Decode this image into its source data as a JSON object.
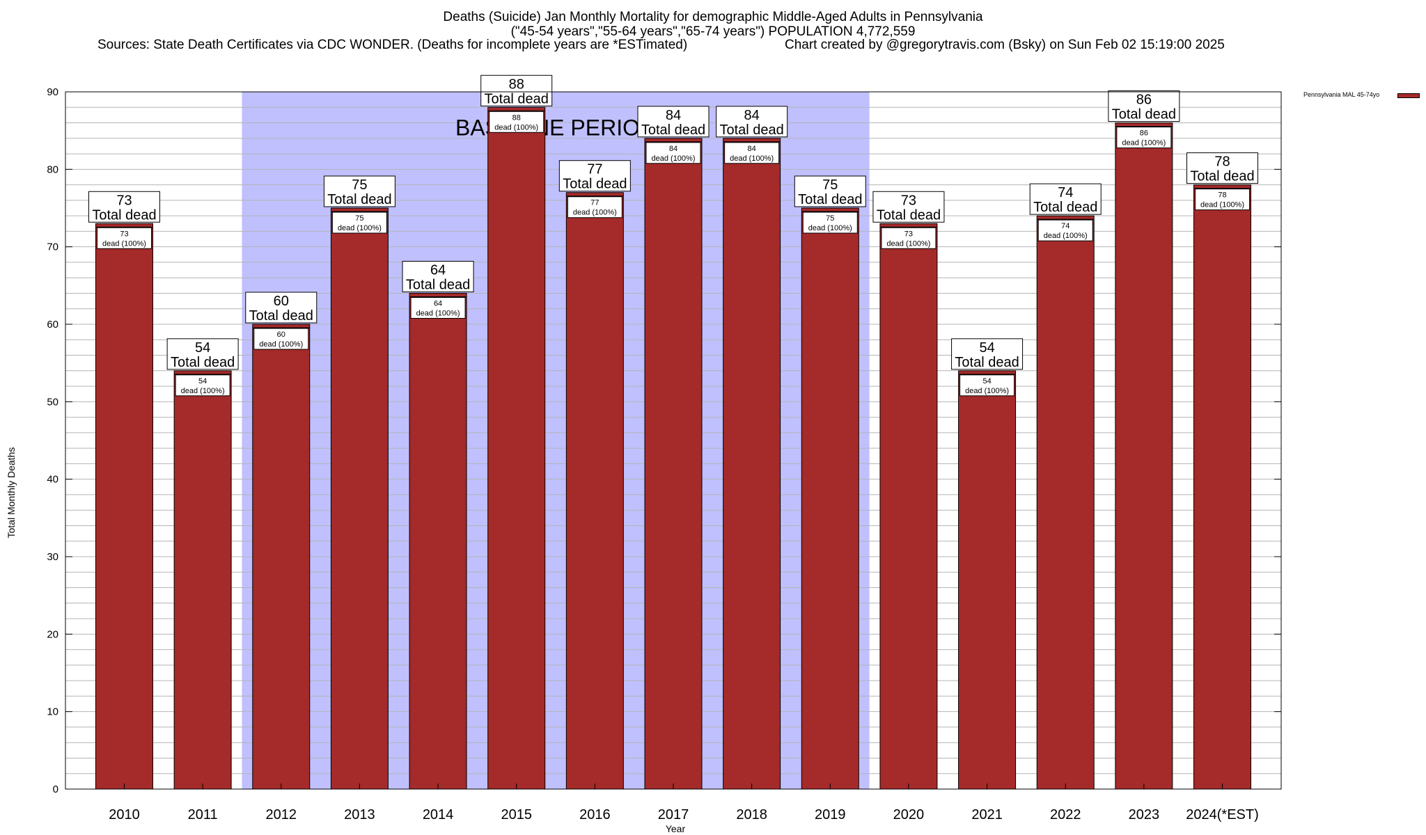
{
  "header": {
    "title_line1": "Deaths (Suicide) Jan Monthly Mortality for demographic Middle-Aged Adults in Pennsylvania",
    "title_line2": "(\"45-54 years\",\"55-64 years\",\"65-74 years\") POPULATION 4,772,559",
    "sources": "Sources: State Death Certificates via CDC WONDER. (Deaths for incomplete years are *ESTimated)",
    "credit": "Chart created by @gregorytravis.com (Bsky) on Sun Feb 02 15:19:00 2025"
  },
  "chart_data": {
    "type": "bar",
    "categories": [
      "2010",
      "2011",
      "2012",
      "2013",
      "2014",
      "2015",
      "2016",
      "2017",
      "2018",
      "2019",
      "2020",
      "2021",
      "2022",
      "2023",
      "2024(*EST)"
    ],
    "series": [
      {
        "name": "Pennsylvania MAL 45-74yo",
        "values": [
          73,
          54,
          60,
          75,
          64,
          88,
          77,
          84,
          84,
          75,
          73,
          54,
          74,
          86,
          78
        ],
        "color": "#a52a2a"
      }
    ],
    "xlabel": "Year",
    "ylabel": "Total Monthly Deaths",
    "ylim": [
      0,
      90
    ],
    "yticks": [
      0,
      10,
      20,
      30,
      40,
      50,
      60,
      70,
      80,
      90
    ],
    "minor_grid_step": 2,
    "grid": true,
    "legend": "top-right",
    "top_label_text": "Total dead",
    "inner_label_text": "dead (100%)",
    "baseline_period": {
      "label": "BASELINE PERIOD",
      "from": "2012",
      "to": "2019",
      "color": "#c0c0ff"
    }
  }
}
